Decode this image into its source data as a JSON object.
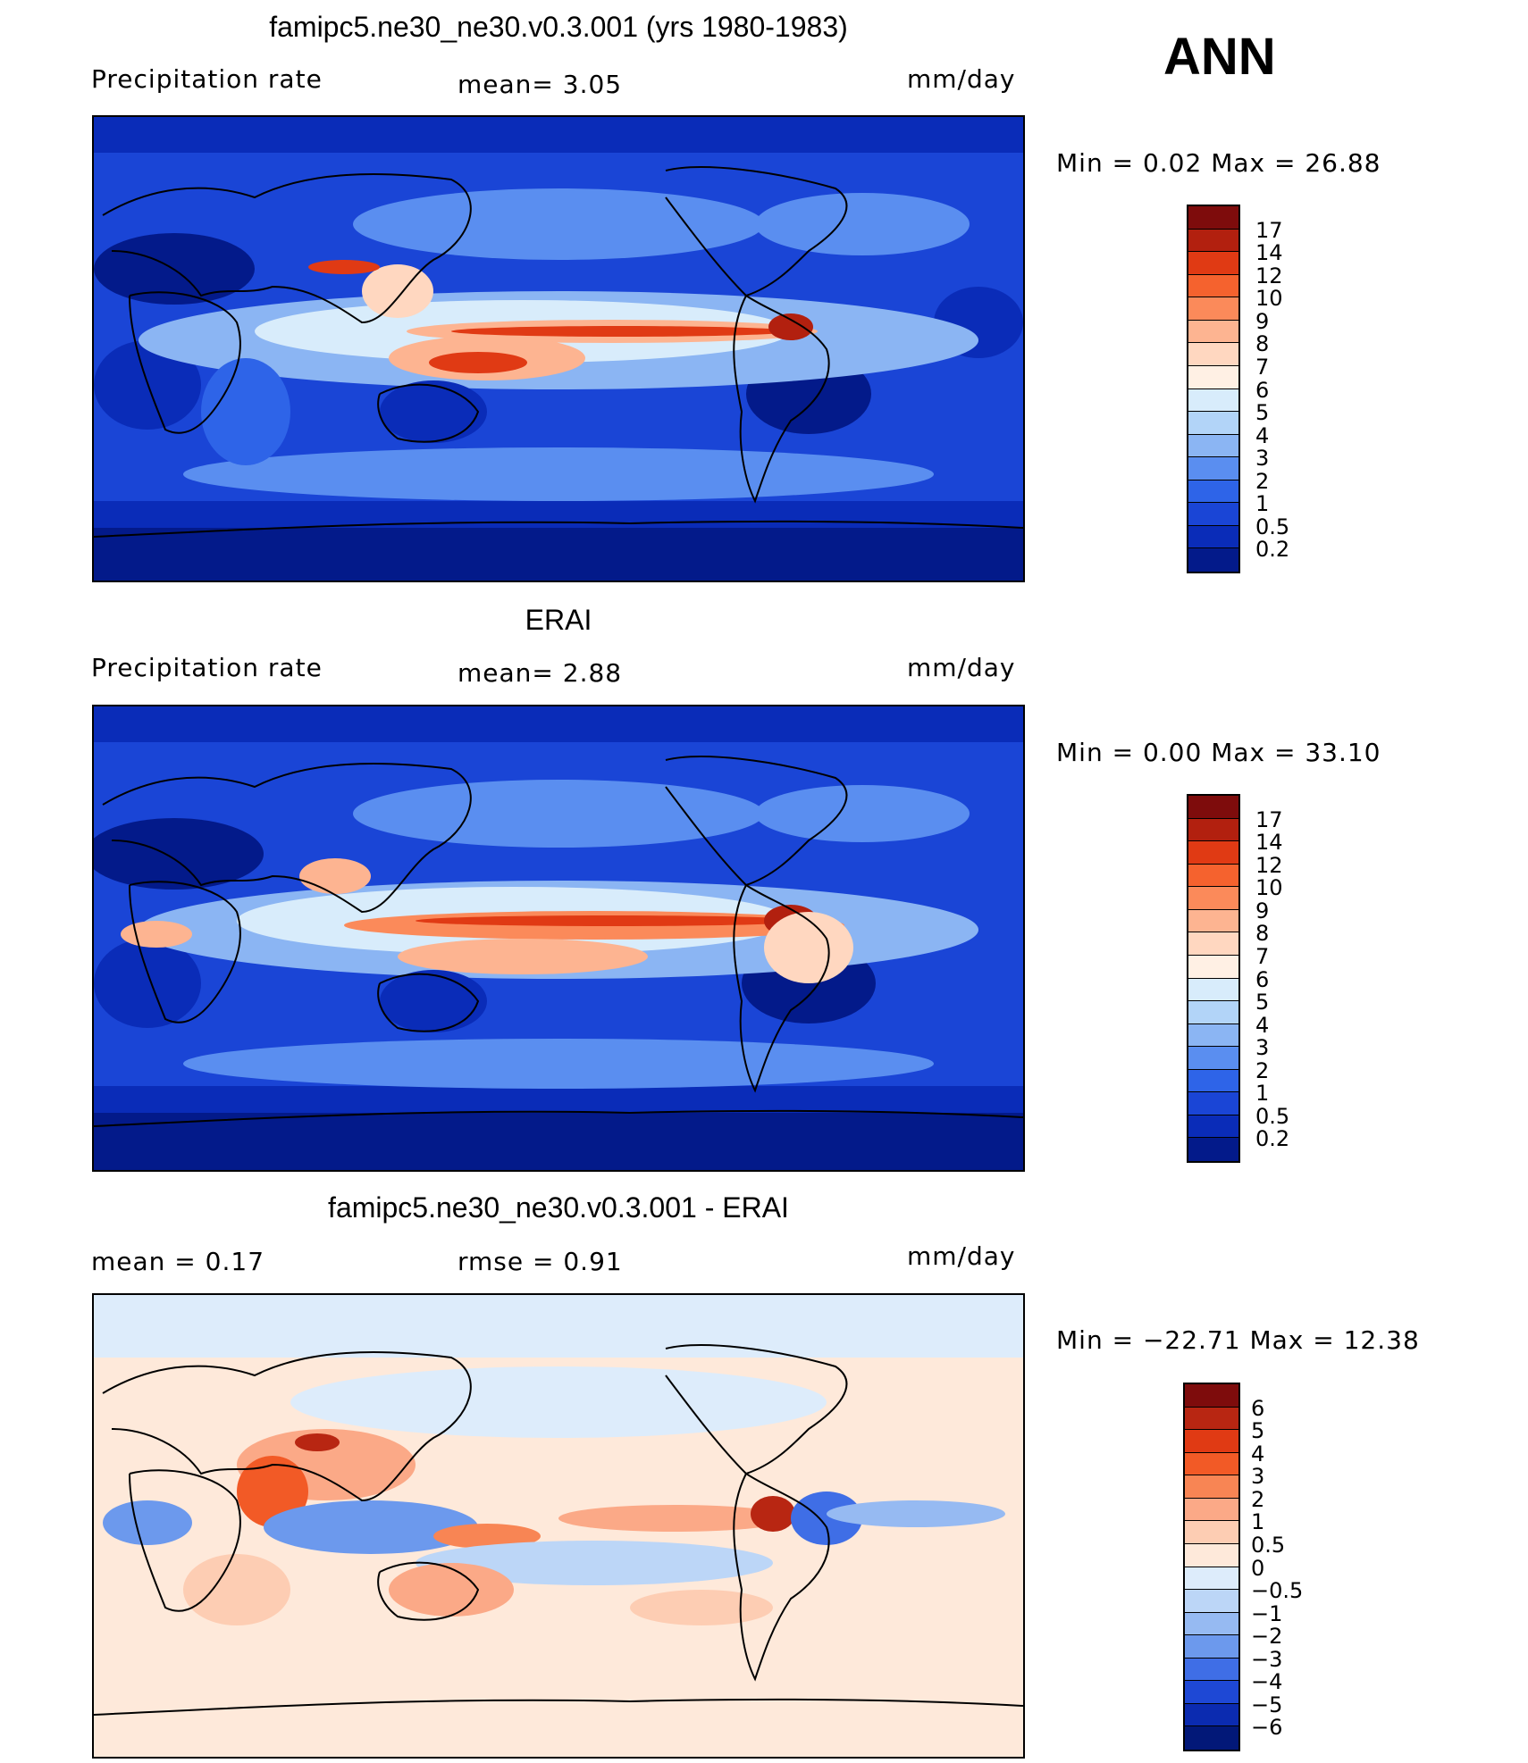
{
  "season": "ANN",
  "panels": [
    {
      "title": "famipc5.ne30_ne30.v0.3.001 (yrs 1980-1983)",
      "left": "Precipitation  rate",
      "mid": "mean=     3.05",
      "units": "mm/day",
      "minmax": "Min  =     0.02  Max  =     26.88",
      "palette": "abs",
      "levels": [
        "17",
        "14",
        "12",
        "10",
        "9",
        "8",
        "7",
        "6",
        "5",
        "4",
        "3",
        "2",
        "1",
        "0.5",
        "0.2"
      ]
    },
    {
      "title": "ERAI",
      "left": "Precipitation  rate",
      "mid": "mean=     2.88",
      "units": "mm/day",
      "minmax": "Min  =     0.00  Max  =     33.10",
      "palette": "abs",
      "levels": [
        "17",
        "14",
        "12",
        "10",
        "9",
        "8",
        "7",
        "6",
        "5",
        "4",
        "3",
        "2",
        "1",
        "0.5",
        "0.2"
      ]
    },
    {
      "title": "famipc5.ne30_ne30.v0.3.001 - ERAI",
      "left": "mean  =     0.17",
      "mid": "rmse  =     0.91",
      "units": "mm/day",
      "minmax": "Min  = −22.71  Max  =     12.38",
      "palette": "diff",
      "levels": [
        "6",
        "5",
        "4",
        "3",
        "2",
        "1",
        "0.5",
        "0",
        "−0.5",
        "−1",
        "−2",
        "−3",
        "−4",
        "−5",
        "−6"
      ]
    }
  ],
  "colors": {
    "abs": [
      "#7e0c0c",
      "#b2200f",
      "#e03a14",
      "#f5622e",
      "#fb8a5a",
      "#fdb491",
      "#ffd7c0",
      "#fff0e4",
      "#d8ecfb",
      "#b2d4f8",
      "#8bb5f3",
      "#5a8ef0",
      "#2e64e8",
      "#1a45d6",
      "#0a2cb8",
      "#031a8a"
    ],
    "diff": [
      "#7e0c0c",
      "#b82612",
      "#e03a14",
      "#f25a26",
      "#f88554",
      "#fba987",
      "#fdcdb3",
      "#fee9da",
      "#ddecfb",
      "#bcd6f7",
      "#96baf2",
      "#6c99ed",
      "#3f6ee6",
      "#1e48d5",
      "#0b2bb0",
      "#021878"
    ]
  }
}
